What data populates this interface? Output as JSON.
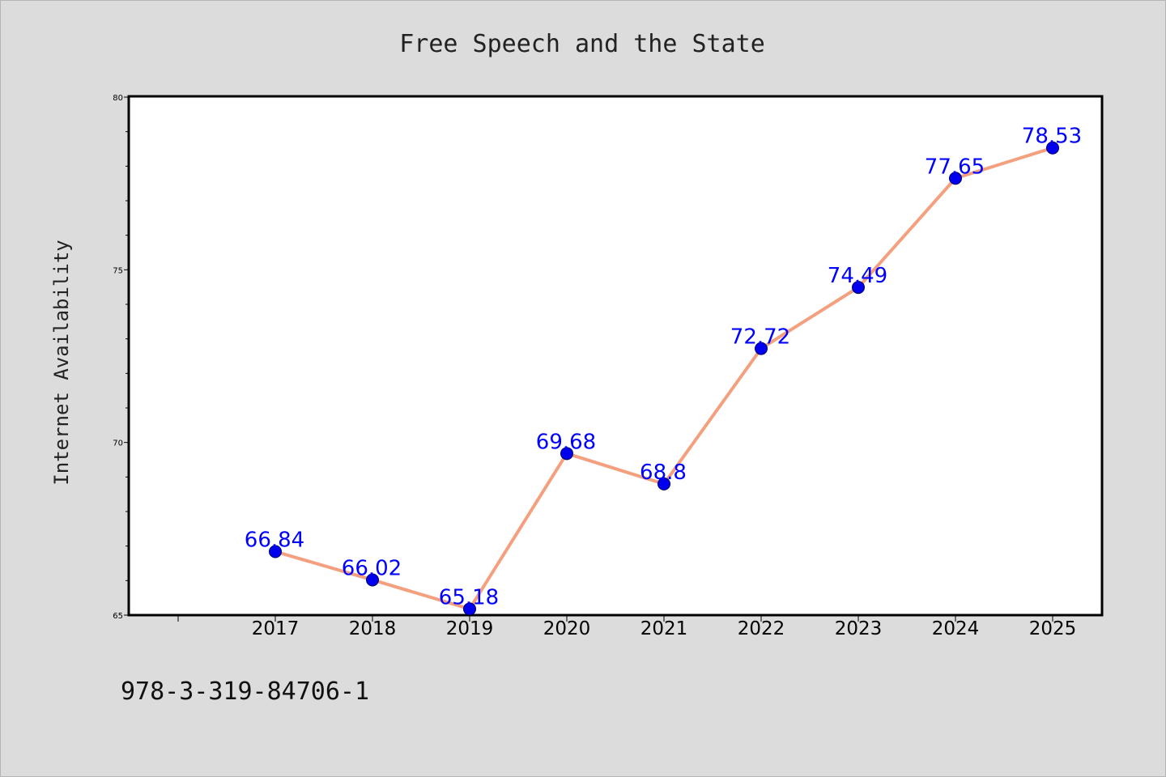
{
  "chart_data": {
    "type": "line",
    "title": "Free Speech and the State",
    "xlabel": "",
    "ylabel": "Internet Availability",
    "categories": [
      "2017",
      "2018",
      "2019",
      "2020",
      "2021",
      "2022",
      "2023",
      "2024",
      "2025"
    ],
    "series": [
      {
        "values": [
          66.84,
          66.02,
          65.18,
          69.68,
          68.8,
          72.72,
          74.49,
          77.65,
          78.53
        ],
        "labels": [
          "66.84",
          "66.02",
          "65.18",
          "69.68",
          "68.8",
          "72.72",
          "74.49",
          "77.65",
          "78.53"
        ],
        "line_color": "#f4a07e",
        "marker_color": "#0000ee",
        "label_color": "#0000ff"
      }
    ],
    "ylim": [
      65,
      80
    ],
    "yticks": [
      "65",
      "70",
      "75",
      "80"
    ],
    "grid": false,
    "legend": "none"
  },
  "footer": {
    "isbn": "978-3-319-84706-1"
  },
  "colors": {
    "background": "#dcdcdc",
    "plot_area": "#ffffff",
    "axis": "#000000"
  }
}
